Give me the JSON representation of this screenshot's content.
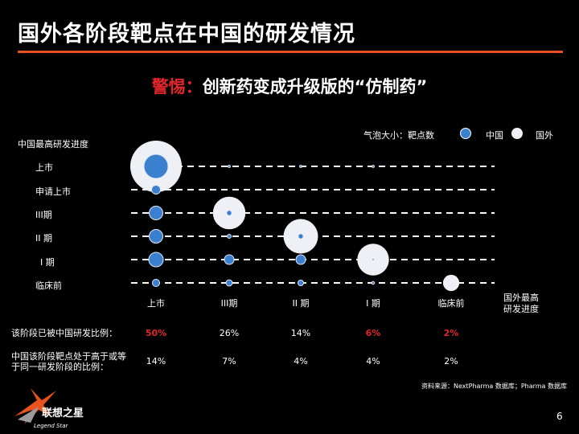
{
  "title": "国外各阶段靶点在中国的研发情况",
  "subtitle": {
    "warn": "警惕：",
    "rest": "创新药变成升级版的“仿制药”"
  },
  "legend": {
    "size_note": "气泡大小：靶点数",
    "china": "中国",
    "foreign": "国外"
  },
  "colors": {
    "accent": "#e8531d",
    "warn": "#e2262b",
    "china": "#3b7fcf",
    "foreign": "#eef0f6",
    "highlight": "#e2262b"
  },
  "chart_data": {
    "type": "bubble",
    "y_axis_title": "中国最高研发进度",
    "x_axis_title": "国外最高\n研发进度",
    "y_categories": [
      "上市",
      "申请上市",
      "III期",
      "II 期",
      "I 期",
      "临床前"
    ],
    "x_categories": [
      "上市",
      "III期",
      "II 期",
      "I 期",
      "临床前"
    ],
    "series": [
      {
        "name": "国外",
        "points": [
          {
            "x": "上市",
            "y": "上市",
            "size": 100
          },
          {
            "x": "III期",
            "y": "III期",
            "size": 40
          },
          {
            "x": "II 期",
            "y": "II 期",
            "size": 45
          },
          {
            "x": "I 期",
            "y": "I 期",
            "size": 38
          },
          {
            "x": "临床前",
            "y": "临床前",
            "size": 10
          }
        ]
      },
      {
        "name": "中国",
        "points": [
          {
            "x": "上市",
            "y": "上市",
            "size": 22
          },
          {
            "x": "上市",
            "y": "申请上市",
            "size": 3
          },
          {
            "x": "上市",
            "y": "III期",
            "size": 7
          },
          {
            "x": "上市",
            "y": "II 期",
            "size": 7
          },
          {
            "x": "上市",
            "y": "I 期",
            "size": 8
          },
          {
            "x": "上市",
            "y": "临床前",
            "size": 2
          },
          {
            "x": "III期",
            "y": "上市",
            "size": 0.2
          },
          {
            "x": "III期",
            "y": "III期",
            "size": 1
          },
          {
            "x": "III期",
            "y": "II 期",
            "size": 0.6
          },
          {
            "x": "III期",
            "y": "I 期",
            "size": 3.5
          },
          {
            "x": "III期",
            "y": "临床前",
            "size": 1.5
          },
          {
            "x": "II 期",
            "y": "上市",
            "size": 0.2
          },
          {
            "x": "II 期",
            "y": "II 期",
            "size": 1
          },
          {
            "x": "II 期",
            "y": "I 期",
            "size": 3.5
          },
          {
            "x": "II 期",
            "y": "临床前",
            "size": 1.2
          },
          {
            "x": "I 期",
            "y": "上市",
            "size": 0.2
          },
          {
            "x": "I 期",
            "y": "I 期",
            "size": 0.15
          },
          {
            "x": "I 期",
            "y": "临床前",
            "size": 0.3
          }
        ]
      }
    ],
    "metrics": [
      {
        "label": "该阶段已被中国研发比例：",
        "values": [
          "50%",
          "26%",
          "14%",
          "6%",
          "2%"
        ],
        "highlight": [
          true,
          false,
          false,
          true,
          true
        ]
      },
      {
        "label": "中国该阶段靶点处于高于或等于同一研发阶段的比例：",
        "values": [
          "14%",
          "7%",
          "4%",
          "4%",
          "2%"
        ],
        "highlight": [
          false,
          false,
          false,
          false,
          false
        ]
      }
    ]
  },
  "source": "资料来源：NextPharma  数据库；Pharma  数据库",
  "logo": {
    "cn": "联想之星",
    "en": "Legend Star"
  },
  "page_number": "6"
}
